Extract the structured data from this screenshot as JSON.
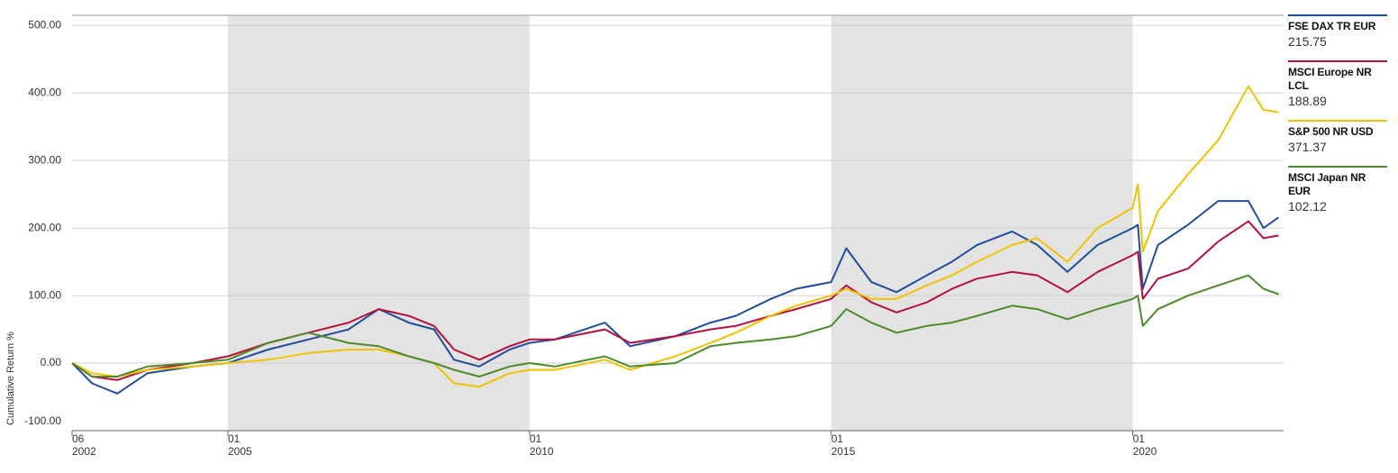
{
  "chart_data": {
    "type": "line",
    "y_label": "Cumulative Return %",
    "x": [
      "2002-06",
      "2002-10",
      "2003-03",
      "2003-09",
      "2004-06",
      "2005-01",
      "2005-09",
      "2006-05",
      "2007-01",
      "2007-07",
      "2008-01",
      "2008-06",
      "2008-10",
      "2009-03",
      "2009-09",
      "2010-01",
      "2010-06",
      "2011-04",
      "2011-09",
      "2012-06",
      "2013-01",
      "2013-06",
      "2014-01",
      "2014-06",
      "2015-01",
      "2015-04",
      "2015-09",
      "2016-02",
      "2016-08",
      "2017-01",
      "2017-06",
      "2018-01",
      "2018-06",
      "2018-12",
      "2019-06",
      "2020-01",
      "2020-02",
      "2020-03",
      "2020-06",
      "2020-12",
      "2021-06",
      "2021-12",
      "2022-03",
      "2022-06"
    ],
    "series": [
      {
        "name": "FSE DAX TR EUR",
        "color": "#1f4e9e",
        "last": 215.75,
        "values": [
          0,
          -30,
          -45,
          -15,
          -5,
          0,
          20,
          35,
          50,
          80,
          60,
          50,
          5,
          -5,
          20,
          30,
          35,
          60,
          25,
          40,
          60,
          70,
          95,
          110,
          120,
          170,
          120,
          105,
          130,
          150,
          175,
          195,
          175,
          135,
          175,
          200,
          205,
          110,
          175,
          205,
          240,
          240,
          200,
          215.75
        ]
      },
      {
        "name": "MSCI Europe NR LCL",
        "color": "#b5103c",
        "last": 188.89,
        "values": [
          0,
          -20,
          -25,
          -10,
          0,
          10,
          30,
          45,
          60,
          80,
          70,
          55,
          20,
          5,
          25,
          35,
          35,
          50,
          30,
          40,
          50,
          55,
          70,
          80,
          95,
          115,
          90,
          75,
          90,
          110,
          125,
          135,
          130,
          105,
          135,
          160,
          165,
          95,
          125,
          140,
          180,
          210,
          185,
          188.89
        ]
      },
      {
        "name": "S&P 500 NR USD",
        "color": "#f2c200",
        "last": 371.37,
        "values": [
          0,
          -15,
          -20,
          -10,
          -5,
          0,
          5,
          15,
          20,
          20,
          10,
          0,
          -30,
          -35,
          -15,
          -10,
          -10,
          5,
          -10,
          10,
          30,
          45,
          70,
          85,
          100,
          110,
          95,
          95,
          115,
          130,
          150,
          175,
          185,
          150,
          200,
          230,
          265,
          165,
          225,
          280,
          330,
          410,
          375,
          371.37
        ]
      },
      {
        "name": "MSCI Japan NR EUR",
        "color": "#4e8a2a",
        "last": 102.12,
        "values": [
          0,
          -20,
          -20,
          -5,
          0,
          5,
          30,
          45,
          30,
          25,
          10,
          0,
          -10,
          -20,
          -5,
          0,
          -5,
          10,
          -5,
          0,
          25,
          30,
          35,
          40,
          55,
          80,
          60,
          45,
          55,
          60,
          70,
          85,
          80,
          65,
          80,
          95,
          100,
          55,
          80,
          100,
          115,
          130,
          110,
          102.12
        ]
      }
    ],
    "xlim": [
      "2002-06",
      "2022-07"
    ],
    "xticks": [
      {
        "value": "2002-06",
        "label": "06\n2002"
      },
      {
        "value": "2005-01",
        "label": "01\n2005"
      },
      {
        "value": "2010-01",
        "label": "01\n2010"
      },
      {
        "value": "2015-01",
        "label": "01\n2015"
      },
      {
        "value": "2020-01",
        "label": "01\n2020"
      }
    ],
    "ylim": [
      -100,
      515
    ],
    "yticks": [
      {
        "value": -100,
        "label": "-100.00"
      },
      {
        "value": 0,
        "label": "0.00"
      },
      {
        "value": 100,
        "label": "100.00"
      },
      {
        "value": 200,
        "label": "200.00"
      },
      {
        "value": 300,
        "label": "300.00"
      },
      {
        "value": 400,
        "label": "400.00"
      },
      {
        "value": 500,
        "label": "500.00"
      }
    ],
    "shaded_ranges": [
      [
        "2005-01",
        "2010-01"
      ],
      [
        "2015-01",
        "2020-01"
      ]
    ],
    "grid": true
  }
}
